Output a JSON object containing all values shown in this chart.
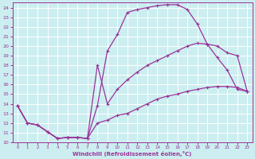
{
  "xlabel": "Windchill (Refroidissement éolien,°C)",
  "bg_color": "#cceef0",
  "grid_color": "#b0d8dc",
  "line_color": "#993399",
  "xlim": [
    -0.5,
    23.5
  ],
  "ylim": [
    10,
    24.5
  ],
  "xticks": [
    0,
    1,
    2,
    3,
    4,
    5,
    6,
    7,
    8,
    9,
    10,
    11,
    12,
    13,
    14,
    15,
    16,
    17,
    18,
    19,
    20,
    21,
    22,
    23
  ],
  "yticks": [
    10,
    11,
    12,
    13,
    14,
    15,
    16,
    17,
    18,
    19,
    20,
    21,
    22,
    23,
    24
  ],
  "curve1_x": [
    0,
    1,
    2,
    3,
    4,
    5,
    6,
    7,
    8,
    9,
    10,
    11,
    12,
    13,
    14,
    15,
    16,
    17,
    18,
    19,
    20,
    21,
    22,
    23
  ],
  "curve1_y": [
    13.8,
    12.0,
    11.8,
    11.1,
    10.4,
    10.5,
    10.5,
    10.4,
    13.8,
    19.5,
    21.2,
    23.5,
    23.8,
    24.0,
    24.2,
    24.3,
    24.3,
    23.8,
    22.3,
    20.2,
    18.8,
    17.5,
    15.5,
    15.3
  ],
  "curve2_x": [
    0,
    1,
    2,
    3,
    4,
    5,
    6,
    7,
    8,
    9,
    10,
    11,
    12,
    13,
    14,
    15,
    16,
    17,
    18,
    19,
    20,
    21,
    22,
    23
  ],
  "curve2_y": [
    13.8,
    12.0,
    11.8,
    11.1,
    10.4,
    10.5,
    10.5,
    10.4,
    18.0,
    14.0,
    15.5,
    16.5,
    17.3,
    18.0,
    18.5,
    19.0,
    19.5,
    20.0,
    20.3,
    20.2,
    20.0,
    19.3,
    19.0,
    15.3
  ],
  "curve3_x": [
    0,
    1,
    2,
    3,
    4,
    5,
    6,
    7,
    8,
    9,
    10,
    11,
    12,
    13,
    14,
    15,
    16,
    17,
    18,
    19,
    20,
    21,
    22,
    23
  ],
  "curve3_y": [
    13.8,
    12.0,
    11.8,
    11.1,
    10.4,
    10.5,
    10.5,
    10.4,
    12.0,
    12.3,
    12.8,
    13.0,
    13.5,
    14.0,
    14.5,
    14.8,
    15.0,
    15.3,
    15.5,
    15.7,
    15.8,
    15.8,
    15.7,
    15.3
  ]
}
